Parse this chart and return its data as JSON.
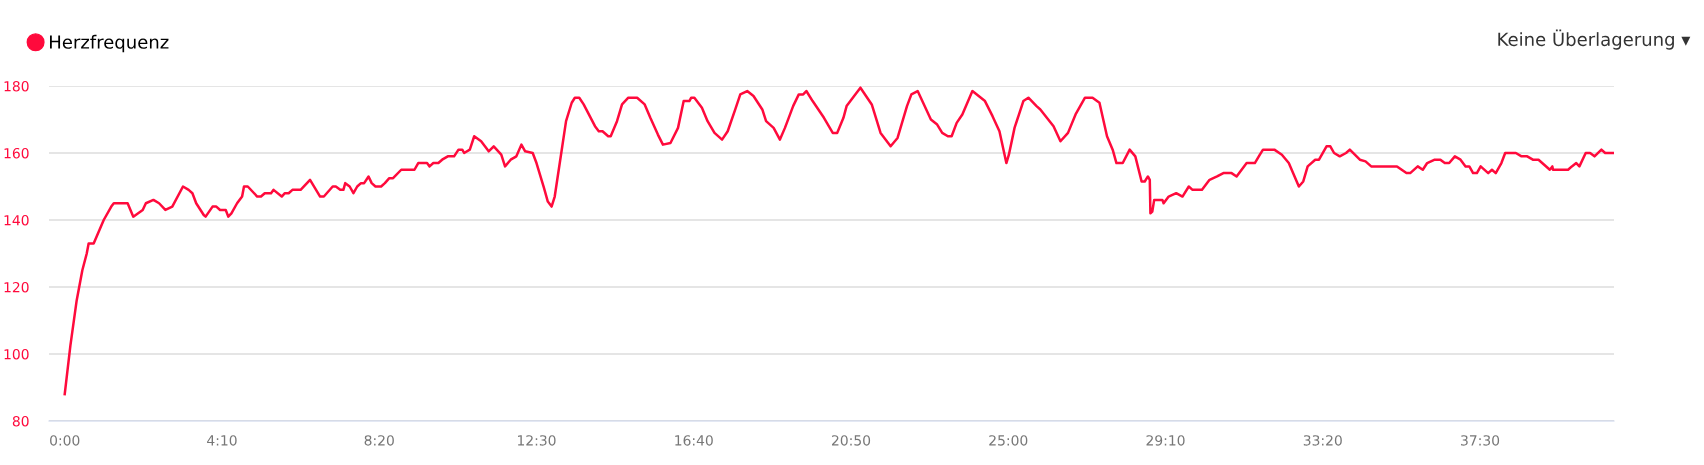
{
  "chart_data": {
    "type": "line",
    "annotations": [
      "Keine Überlagerung ▾"
    ],
    "legend": "top left",
    "grid": "y",
    "marker": "none",
    "line_style": "solid",
    "xlim": [
      -25,
      2463
    ],
    "ylim": [
      80,
      180
    ],
    "yticks": [
      80,
      100,
      120,
      140,
      160,
      180
    ],
    "xticks": [
      {
        "value": 0,
        "label": "0:00"
      },
      {
        "value": 250,
        "label": "4:10"
      },
      {
        "value": 500,
        "label": "8:20"
      },
      {
        "value": 750,
        "label": "12:30"
      },
      {
        "value": 1000,
        "label": "16:40"
      },
      {
        "value": 1250,
        "label": "20:50"
      },
      {
        "value": 1500,
        "label": "25:00"
      },
      {
        "value": 1750,
        "label": "29:10"
      },
      {
        "value": 2000,
        "label": "33:20"
      },
      {
        "value": 2250,
        "label": "37:30"
      }
    ],
    "series": [
      {
        "name": "Herzfrequenz",
        "color": "#ff0a3c",
        "x": [
          0,
          9,
          19,
          28,
          35,
          38,
          46,
          62,
          74,
          78,
          100,
          109,
          124,
          129,
          141,
          150,
          160,
          171,
          188,
          197,
          203,
          209,
          221,
          224,
          235,
          241,
          247,
          256,
          260,
          265,
          274,
          282,
          285,
          291,
          306,
          312,
          318,
          328,
          332,
          345,
          350,
          356,
          362,
          375,
          390,
          406,
          412,
          426,
          431,
          438,
          443,
          446,
          453,
          459,
          465,
          471,
          476,
          483,
          488,
          494,
          503,
          509,
          516,
          522,
          535,
          556,
          562,
          576,
          580,
          586,
          594,
          600,
          609,
          619,
          626,
          632,
          635,
          644,
          651,
          662,
          674,
          682,
          694,
          700,
          709,
          718,
          726,
          732,
          744,
          750,
          762,
          768,
          774,
          779,
          791,
          797,
          806,
          811,
          818,
          825,
          843,
          849,
          855,
          864,
          868,
          878,
          886,
          896,
          899,
          910,
          922,
          931,
          943,
          951,
          963,
          975,
          984,
          993,
          996,
          1001,
          1013,
          1022,
          1033,
          1045,
          1054,
          1066,
          1074,
          1085,
          1095,
          1109,
          1115,
          1127,
          1137,
          1145,
          1151,
          1158,
          1167,
          1174,
          1179,
          1189,
          1207,
          1221,
          1228,
          1238,
          1243,
          1255,
          1265,
          1283,
          1297,
          1313,
          1324,
          1339,
          1346,
          1356,
          1377,
          1387,
          1395,
          1404,
          1410,
          1418,
          1427,
          1443,
          1463,
          1475,
          1486,
          1497,
          1501,
          1510,
          1524,
          1532,
          1545,
          1551,
          1572,
          1583,
          1595,
          1607,
          1622,
          1634,
          1645,
          1657,
          1666,
          1672,
          1682,
          1693,
          1702,
          1712,
          1717,
          1722,
          1725,
          1726,
          1729,
          1732,
          1745,
          1747,
          1755,
          1767,
          1777,
          1787,
          1793,
          1808,
          1820,
          1832,
          1842,
          1855,
          1863,
          1879,
          1892,
          1900,
          1905,
          1923,
          1935,
          1946,
          1962,
          1969,
          1976,
          1988,
          1994,
          2006,
          2012,
          2018,
          2027,
          2037,
          2043,
          2059,
          2068,
          2077,
          2118,
          2133,
          2139,
          2151,
          2159,
          2166,
          2178,
          2187,
          2194,
          2201,
          2210,
          2219,
          2227,
          2233,
          2239,
          2245,
          2251,
          2263,
          2269,
          2275,
          2284,
          2290,
          2307,
          2316,
          2325,
          2334,
          2343,
          2361,
          2365,
          2366,
          2390,
          2396,
          2403,
          2408,
          2418,
          2425,
          2432,
          2443,
          2449,
          2463
        ],
        "values": [
          88,
          102.5,
          116,
          125,
          130,
          133,
          133,
          140,
          144,
          145,
          145,
          141,
          143,
          145,
          146,
          145,
          143,
          144,
          150,
          149,
          148,
          145,
          141.5,
          141,
          144,
          144,
          143,
          143,
          141,
          142,
          145,
          147,
          150,
          150,
          147,
          147,
          148,
          148,
          149,
          147,
          148,
          148,
          149,
          149,
          152,
          147,
          147,
          150,
          150,
          149,
          149,
          151,
          150,
          148,
          150,
          151,
          151,
          153,
          151,
          150,
          150,
          151,
          152.5,
          152.5,
          155,
          155,
          157,
          157,
          156,
          157,
          157,
          158,
          159,
          159,
          161,
          161,
          160,
          161,
          165,
          163.5,
          160.5,
          162,
          159.5,
          156,
          158,
          159,
          162.5,
          160.5,
          160,
          157,
          149.5,
          145.5,
          144,
          147,
          162,
          169.5,
          175,
          176.5,
          176.5,
          174.5,
          168,
          166.5,
          166.5,
          165,
          165,
          169.5,
          174.5,
          176.5,
          176.5,
          176.5,
          174.5,
          170.5,
          165.5,
          162.5,
          163,
          167.5,
          175.5,
          175.5,
          176.5,
          176.5,
          173.5,
          169.5,
          166,
          164,
          166.5,
          173,
          177.5,
          178.5,
          177,
          173,
          169.5,
          167.5,
          164,
          167.5,
          170.5,
          174,
          177.5,
          177.5,
          178.5,
          175.5,
          170.5,
          166,
          166,
          170.5,
          174,
          177,
          179.5,
          174.5,
          166,
          162,
          164.5,
          174,
          177.5,
          178.5,
          170,
          168.5,
          166,
          165,
          165,
          169,
          171.5,
          178.5,
          175.5,
          171,
          166.5,
          157,
          159.5,
          167.5,
          175.5,
          176.5,
          174,
          173,
          168,
          163.5,
          166,
          171.5,
          176.5,
          176.5,
          175,
          165,
          161,
          157,
          157,
          161,
          159,
          151.5,
          151.5,
          153,
          152,
          142,
          142.5,
          146,
          146,
          145,
          147,
          148,
          147,
          150,
          149,
          149,
          152,
          153,
          154,
          154,
          153,
          157,
          157,
          159.5,
          161,
          161,
          159.5,
          157,
          150,
          151.5,
          156,
          158,
          158,
          162,
          162,
          160,
          159,
          160,
          161,
          158,
          157.5,
          156,
          156,
          154,
          154,
          156,
          155,
          157,
          158,
          158,
          157,
          157,
          159,
          158,
          156,
          156,
          154,
          154,
          156,
          154,
          155,
          154,
          157,
          160,
          160,
          159,
          159,
          158,
          158,
          155,
          156,
          155,
          155,
          156,
          157,
          156,
          160,
          160,
          159,
          161,
          160,
          160
        ]
      }
    ]
  }
}
